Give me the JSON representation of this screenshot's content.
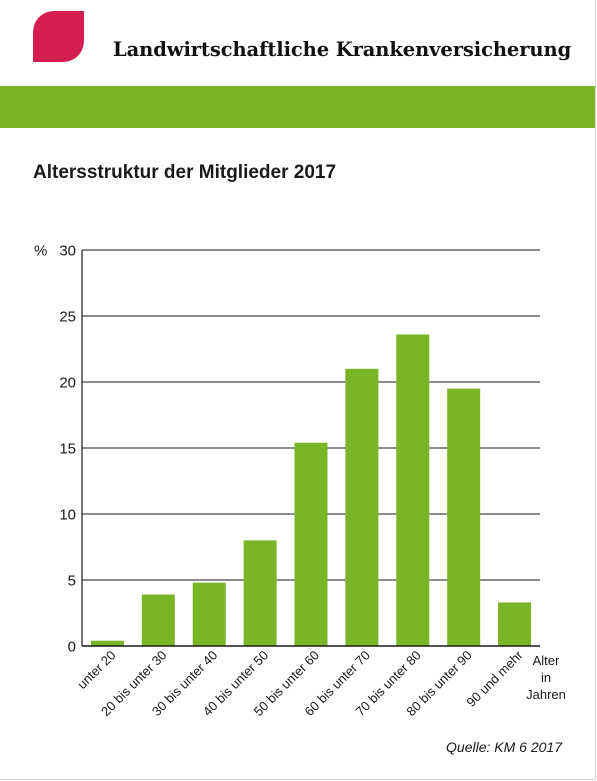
{
  "header": {
    "org_title": "Landwirtschaftliche Krankenversicherung",
    "logo_icon": "leaf-logo-icon",
    "accent_color": "#d41e4f",
    "band_color": "#7ab526"
  },
  "chart_data": {
    "type": "bar",
    "title": "Altersstruktur der Mitglieder 2017",
    "ylabel": "%",
    "xlabel_lines": [
      "Alter",
      "in",
      "Jahren"
    ],
    "categories": [
      "unter 20",
      "20 bis unter 30",
      "30 bis unter 40",
      "40 bis unter 50",
      "50 bis unter 60",
      "60 bis unter 70",
      "70 bis unter 80",
      "80 bis unter 90",
      "90 und mehr"
    ],
    "values": [
      0.4,
      3.9,
      4.8,
      8.0,
      15.4,
      21.0,
      23.6,
      19.5,
      3.3
    ],
    "ylim": [
      0,
      30
    ],
    "yticks": [
      "0",
      "5",
      "10",
      "15",
      "20",
      "25",
      "30"
    ],
    "grid": true,
    "bar_color": "#7ab526",
    "source": "Quelle: KM 6 2017"
  }
}
